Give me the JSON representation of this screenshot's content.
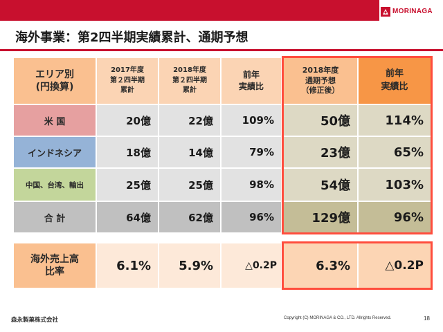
{
  "header": {
    "brand": "MORINAGA",
    "title": "海外事業：第2四半期実績累計、通期予想",
    "bar_color": "#c8102e"
  },
  "table": {
    "headers": {
      "region": "エリア別\n(円換算)",
      "fy2017_q2": "2017年度\n第２四半期\n累計",
      "fy2018_q2": "2018年度\n第２四半期\n累計",
      "yoy": "前年\n実績比",
      "fy2018_forecast": "2018年度\n通期予想\n（修正後）",
      "forecast_yoy": "前年\n実績比"
    },
    "rows": [
      {
        "region": "米 国",
        "fy2017_q2": "20億",
        "fy2018_q2": "22億",
        "yoy": "109%",
        "fy2018_forecast": "50億",
        "forecast_yoy": "114%"
      },
      {
        "region": "インドネシア",
        "fy2017_q2": "18億",
        "fy2018_q2": "14億",
        "yoy": "79%",
        "fy2018_forecast": "23億",
        "forecast_yoy": "65%"
      },
      {
        "region": "中国、台湾、輸出",
        "fy2017_q2": "25億",
        "fy2018_q2": "25億",
        "yoy": "98%",
        "fy2018_forecast": "54億",
        "forecast_yoy": "103%"
      },
      {
        "region": "合 計",
        "fy2017_q2": "64億",
        "fy2018_q2": "62億",
        "yoy": "96%",
        "fy2018_forecast": "129億",
        "forecast_yoy": "96%"
      }
    ]
  },
  "ratio": {
    "label": "海外売上高\n比率",
    "fy2017_q2": "6.1%",
    "fy2018_q2": "5.9%",
    "yoy": "△0.2P",
    "fy2018_forecast": "6.3%",
    "forecast_yoy": "△0.2P"
  },
  "footer": {
    "company": "森永製菓株式会社",
    "copyright": "Copyright (C) MORINAGA & CO., LTD. Allrights Reserved.",
    "page": "18"
  },
  "colors": {
    "highlight_border": "#ff4d3d",
    "header_orange": "#fac090",
    "header_orange_dark": "#f79646"
  }
}
